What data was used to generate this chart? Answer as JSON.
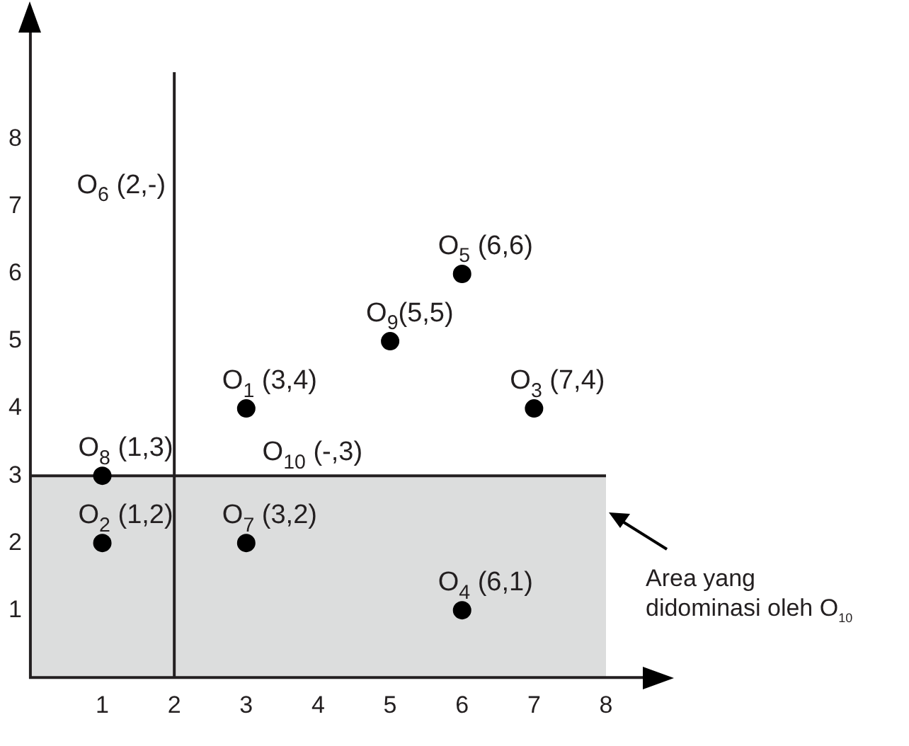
{
  "chart_data": {
    "type": "scatter",
    "x": [
      1,
      1,
      3,
      3,
      5,
      6,
      7,
      6
    ],
    "values": [
      3,
      2,
      2,
      4,
      5,
      6,
      4,
      1
    ],
    "color": "#000000",
    "marker": "circle",
    "xlim": [
      0,
      8
    ],
    "ylim": [
      0,
      9
    ],
    "xticks": [
      1,
      2,
      3,
      4,
      5,
      6,
      7,
      8
    ],
    "yticks": [
      1,
      2,
      3,
      4,
      5,
      6,
      7,
      8
    ],
    "grid": false,
    "legend": false,
    "ref_lines": [
      {
        "axis": "x",
        "value": 2,
        "label": "O$_{6}$ (2,-)",
        "color": "#231f20"
      },
      {
        "axis": "y",
        "value": 3,
        "label": "O$_{10}$ (-,3)",
        "color": "#231f20"
      }
    ],
    "bands": [
      {
        "axis": "y",
        "from": 0,
        "to": 3,
        "color": "#dcdddd"
      }
    ],
    "annotations": [
      {
        "text": "O$_{8}$ (1,3)",
        "x": 1,
        "y": 3
      },
      {
        "text": "O$_{2}$ (1,2)",
        "x": 1,
        "y": 2
      },
      {
        "text": "O$_{7}$ (3,2)",
        "x": 3,
        "y": 2
      },
      {
        "text": "O$_{1}$ (3,4)",
        "x": 3,
        "y": 4
      },
      {
        "text": "O$_{9}$(5,5)",
        "x": 5,
        "y": 5
      },
      {
        "text": "O$_{5}$ (6,6)",
        "x": 6,
        "y": 6
      },
      {
        "text": "O$_{3}$ (7,4)",
        "x": 7,
        "y": 4
      },
      {
        "text": "O$_{4}$ (6,1)",
        "x": 6,
        "y": 1
      },
      "Area yang didominasi oleh O$_{10}$"
    ]
  }
}
